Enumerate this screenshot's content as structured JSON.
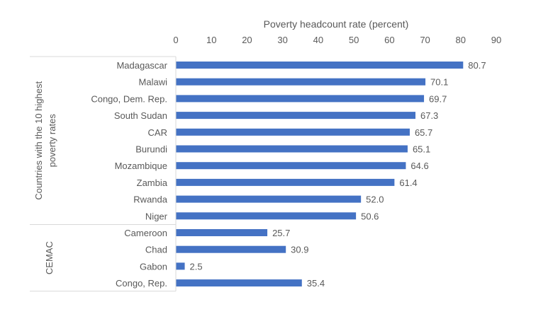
{
  "chart_data": {
    "type": "bar",
    "orientation": "horizontal",
    "title": "",
    "xlabel": "Poverty headcount rate (percent)",
    "xlim": [
      0,
      90
    ],
    "xticks": [
      0,
      10,
      20,
      30,
      40,
      50,
      60,
      70,
      80,
      90
    ],
    "x_axis_position": "top",
    "grid": false,
    "bar_color": "#4472C4",
    "groups": [
      {
        "label": "Countries with the 10 highest poverty rates",
        "categories": [
          "Madagascar",
          "Malawi",
          "Congo, Dem. Rep.",
          "South Sudan",
          "CAR",
          "Burundi",
          "Mozambique",
          "Zambia",
          "Rwanda",
          "Niger"
        ],
        "values": [
          80.7,
          70.1,
          69.7,
          67.3,
          65.7,
          65.1,
          64.6,
          61.4,
          52.0,
          50.6
        ],
        "value_labels": [
          "80.7",
          "70.1",
          "69.7",
          "67.3",
          "65.7",
          "65.1",
          "64.6",
          "61.4",
          "52.0",
          "50.6"
        ]
      },
      {
        "label": "CEMAC",
        "categories": [
          "Cameroon",
          "Chad",
          "Gabon",
          "Congo, Rep."
        ],
        "values": [
          25.7,
          30.9,
          2.5,
          35.4
        ],
        "value_labels": [
          "25.7",
          "30.9",
          "2.5",
          "35.4"
        ]
      }
    ]
  }
}
